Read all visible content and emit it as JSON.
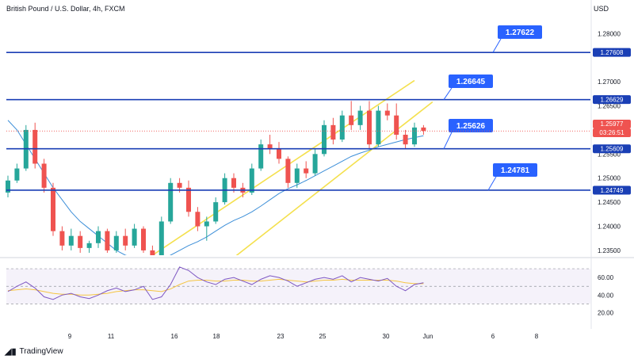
{
  "header": {
    "title": "British Pound / U.S. Dollar, 4h, FXCM",
    "currency": "USD"
  },
  "brand": {
    "name": "TradingView",
    "icon": "tradingview-logo-icon"
  },
  "colors": {
    "up": "#26a69a",
    "down": "#ef5350",
    "level": "#1a3fb5",
    "ma": "#3d8fd8",
    "channel": "#f4e04d",
    "rsi": "#7e57c2",
    "rsi_ma": "#f5c542",
    "current": "#ef5350",
    "callout": "#2962ff"
  },
  "current_price": {
    "value": "1.25977",
    "countdown": "03:26:51"
  },
  "chart_data": {
    "type": "candlestick",
    "title": "British Pound / U.S. Dollar, 4h, FXCM",
    "y_axis_ticks": [
      "1.28000",
      "1.27000",
      "1.26500",
      "1.25500",
      "1.25000",
      "1.24500",
      "1.24000",
      "1.23500"
    ],
    "ylim": [
      1.234,
      1.284
    ],
    "x_axis_ticks": [
      "9",
      "11",
      "16",
      "18",
      "23",
      "25",
      "30",
      "Jun",
      "6",
      "8"
    ],
    "horizontal_levels": [
      {
        "price": 1.27608,
        "axis_label": "1.27608",
        "callout": "1.27622"
      },
      {
        "price": 1.26629,
        "axis_label": "1.26629",
        "callout": "1.26645"
      },
      {
        "price": 1.25609,
        "axis_label": "1.25609",
        "callout": "1.25626"
      },
      {
        "price": 1.24749,
        "axis_label": "1.24749",
        "callout": "1.24781"
      }
    ],
    "channel": {
      "upper": [
        {
          "x": 16,
          "price": 1.234
        },
        {
          "x": 36,
          "price": 1.259
        }
      ],
      "lower": [
        {
          "x": 25,
          "price": 1.2335
        },
        {
          "x": 41,
          "price": 1.257
        }
      ]
    },
    "candles": [
      [
        1.247,
        1.2505,
        1.246,
        1.2495
      ],
      [
        1.2495,
        1.253,
        1.249,
        1.252
      ],
      [
        1.252,
        1.261,
        1.2515,
        1.26
      ],
      [
        1.26,
        1.2615,
        1.252,
        1.253
      ],
      [
        1.253,
        1.254,
        1.247,
        1.248
      ],
      [
        1.248,
        1.249,
        1.238,
        1.239
      ],
      [
        1.239,
        1.24,
        1.235,
        1.236
      ],
      [
        1.236,
        1.2395,
        1.235,
        1.238
      ],
      [
        1.238,
        1.239,
        1.2345,
        1.2355
      ],
      [
        1.2355,
        1.237,
        1.2345,
        1.2365
      ],
      [
        1.2365,
        1.24,
        1.2355,
        1.239
      ],
      [
        1.239,
        1.2395,
        1.2345,
        1.235
      ],
      [
        1.235,
        1.239,
        1.2345,
        1.238
      ],
      [
        1.238,
        1.2395,
        1.235,
        1.236
      ],
      [
        1.236,
        1.2405,
        1.2355,
        1.2395
      ],
      [
        1.2395,
        1.24,
        1.2345,
        1.235
      ],
      [
        1.235,
        1.236,
        1.233,
        1.234
      ],
      [
        1.234,
        1.242,
        1.2335,
        1.241
      ],
      [
        1.241,
        1.25,
        1.2405,
        1.249
      ],
      [
        1.249,
        1.25,
        1.247,
        1.248
      ],
      [
        1.248,
        1.2495,
        1.242,
        1.243
      ],
      [
        1.243,
        1.244,
        1.239,
        1.24
      ],
      [
        1.24,
        1.242,
        1.237,
        1.241
      ],
      [
        1.241,
        1.246,
        1.2405,
        1.245
      ],
      [
        1.245,
        1.251,
        1.2445,
        1.25
      ],
      [
        1.25,
        1.251,
        1.247,
        1.248
      ],
      [
        1.248,
        1.249,
        1.246,
        1.247
      ],
      [
        1.247,
        1.253,
        1.2465,
        1.252
      ],
      [
        1.252,
        1.258,
        1.2515,
        1.257
      ],
      [
        1.257,
        1.259,
        1.255,
        1.256
      ],
      [
        1.256,
        1.2575,
        1.253,
        1.254
      ],
      [
        1.254,
        1.2545,
        1.248,
        1.249
      ],
      [
        1.249,
        1.253,
        1.248,
        1.252
      ],
      [
        1.252,
        1.2535,
        1.25,
        1.251
      ],
      [
        1.251,
        1.256,
        1.2505,
        1.255
      ],
      [
        1.255,
        1.262,
        1.2545,
        1.261
      ],
      [
        1.261,
        1.2625,
        1.257,
        1.258
      ],
      [
        1.258,
        1.264,
        1.2575,
        1.263
      ],
      [
        1.263,
        1.266,
        1.26,
        1.261
      ],
      [
        1.261,
        1.265,
        1.26,
        1.264
      ],
      [
        1.264,
        1.266,
        1.256,
        1.257
      ],
      [
        1.257,
        1.265,
        1.2565,
        1.264
      ],
      [
        1.264,
        1.2655,
        1.262,
        1.263
      ],
      [
        1.263,
        1.2655,
        1.258,
        1.259
      ],
      [
        1.259,
        1.26,
        1.256,
        1.257
      ],
      [
        1.257,
        1.2615,
        1.2565,
        1.2605
      ],
      [
        1.2605,
        1.261,
        1.259,
        1.2598
      ]
    ],
    "ma_line": [
      1.262,
      1.26,
      1.257,
      1.254,
      1.251,
      1.248,
      1.2455,
      1.243,
      1.241,
      1.2395,
      1.238,
      1.2365,
      1.235,
      1.234,
      1.2335,
      1.233,
      1.2328,
      1.2332,
      1.234,
      1.235,
      1.236,
      1.2368,
      1.2378,
      1.239,
      1.2402,
      1.2412,
      1.242,
      1.243,
      1.2442,
      1.2455,
      1.2468,
      1.2478,
      1.2486,
      1.2495,
      1.2505,
      1.2515,
      1.2525,
      1.2535,
      1.2545,
      1.2552,
      1.2558,
      1.2565,
      1.257,
      1.2575,
      1.258,
      1.2584,
      1.2588
    ],
    "rsi": {
      "axis_ticks": [
        "60.00",
        "40.00",
        "20.00"
      ],
      "ylim": [
        15,
        80
      ],
      "bands": [
        70,
        50,
        30
      ],
      "values": [
        44,
        50,
        55,
        48,
        38,
        35,
        40,
        42,
        38,
        36,
        40,
        45,
        48,
        44,
        46,
        50,
        35,
        38,
        52,
        72,
        68,
        60,
        55,
        52,
        58,
        60,
        56,
        52,
        58,
        62,
        60,
        56,
        50,
        54,
        58,
        60,
        58,
        62,
        55,
        60,
        58,
        56,
        59,
        50,
        45,
        52,
        54
      ],
      "ma": [
        45,
        46,
        47,
        46,
        44,
        42,
        41,
        41,
        40,
        40,
        41,
        42,
        44,
        45,
        46,
        46,
        45,
        44,
        47,
        52,
        56,
        57,
        57,
        56,
        56,
        57,
        57,
        56,
        56,
        57,
        58,
        57,
        56,
        55,
        56,
        57,
        57,
        58,
        57,
        57,
        57,
        57,
        57,
        56,
        54,
        53,
        53
      ]
    }
  }
}
